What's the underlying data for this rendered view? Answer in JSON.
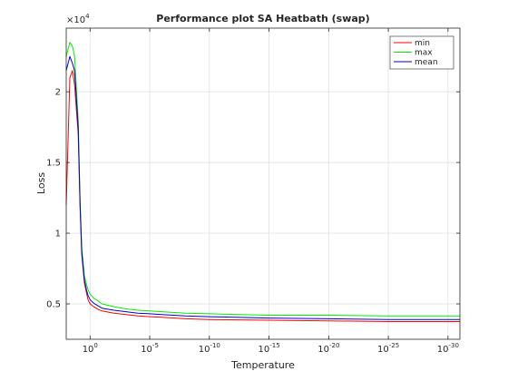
{
  "chart_data": {
    "type": "line",
    "title": "Performance plot SA Heatbath (swap)",
    "xlabel": "Temperature",
    "ylabel": "Loss",
    "x_scale": "log",
    "x_reversed": true,
    "y_multiplier": "×10",
    "y_multiplier_exponent": "4",
    "xlim": [
      100,
      1e-31
    ],
    "ylim": [
      2500,
      24500
    ],
    "grid": true,
    "legend_position": "top-right",
    "x_ticks": [
      {
        "base": "10",
        "exp": "0",
        "value": 1
      },
      {
        "base": "10",
        "exp": "-5",
        "value": 1e-05
      },
      {
        "base": "10",
        "exp": "-10",
        "value": 1e-10
      },
      {
        "base": "10",
        "exp": "-15",
        "value": 1e-15
      },
      {
        "base": "10",
        "exp": "-20",
        "value": 1e-20
      },
      {
        "base": "10",
        "exp": "-25",
        "value": 1e-25
      },
      {
        "base": "10",
        "exp": "-30",
        "value": 1e-30
      }
    ],
    "y_ticks": [
      {
        "label": "0.5",
        "value": 5000
      },
      {
        "label": "1",
        "value": 10000
      },
      {
        "label": "1.5",
        "value": 15000
      },
      {
        "label": "2",
        "value": 20000
      }
    ],
    "series": [
      {
        "name": "min",
        "color": "#ff0000",
        "x": [
          100,
          50,
          30,
          20,
          10,
          7,
          5,
          3,
          2,
          1.5,
          1,
          0.5,
          0.2,
          0.1,
          0.01,
          0.001,
          0.0001,
          1e-05,
          1e-06,
          1e-08,
          1e-10,
          1e-15,
          1e-20,
          1e-25,
          1e-30,
          1e-31
        ],
        "y": [
          12000,
          21000,
          21500,
          20500,
          17000,
          12000,
          8500,
          6500,
          5800,
          5300,
          5000,
          4800,
          4600,
          4500,
          4350,
          4250,
          4150,
          4100,
          4050,
          3950,
          3900,
          3850,
          3800,
          3750,
          3750,
          3750
        ]
      },
      {
        "name": "max",
        "color": "#00ee00",
        "x": [
          100,
          50,
          30,
          20,
          10,
          7,
          5,
          3,
          2,
          1.5,
          1,
          0.5,
          0.2,
          0.1,
          0.01,
          0.001,
          0.0001,
          1e-05,
          1e-06,
          1e-08,
          1e-10,
          1e-15,
          1e-20,
          1e-25,
          1e-30,
          1e-31
        ],
        "y": [
          22500,
          23500,
          23200,
          22500,
          18000,
          12500,
          9000,
          7000,
          6400,
          6000,
          5700,
          5400,
          5200,
          5000,
          4800,
          4650,
          4550,
          4500,
          4450,
          4350,
          4300,
          4200,
          4200,
          4150,
          4150,
          4150
        ]
      },
      {
        "name": "mean",
        "color": "#0000cc",
        "x": [
          100,
          50,
          30,
          20,
          10,
          7,
          5,
          3,
          2,
          1.5,
          1,
          0.5,
          0.2,
          0.1,
          0.01,
          0.001,
          0.0001,
          1e-05,
          1e-06,
          1e-08,
          1e-10,
          1e-15,
          1e-20,
          1e-25,
          1e-30,
          1e-31
        ],
        "y": [
          21500,
          22500,
          22000,
          21500,
          17500,
          12200,
          8700,
          6700,
          6000,
          5600,
          5300,
          5050,
          4850,
          4700,
          4550,
          4450,
          4350,
          4300,
          4250,
          4150,
          4100,
          4000,
          3950,
          3900,
          3900,
          3900
        ]
      }
    ]
  }
}
